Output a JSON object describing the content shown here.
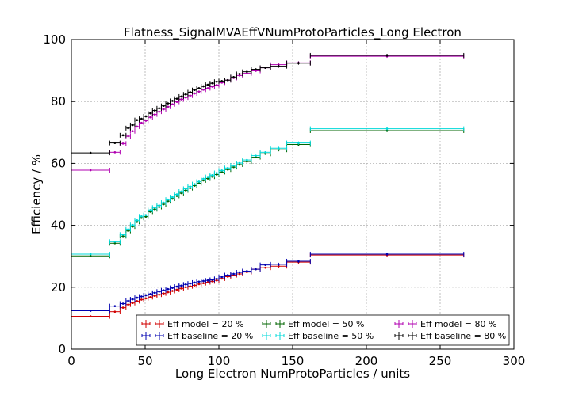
{
  "chart_data": {
    "type": "scatter",
    "title": "Flatness_SignalMVAEffVNumProtoParticles_Long Electron",
    "xlabel": "Long Electron NumProtoParticles / units",
    "ylabel": "Efficiency / %",
    "xlim": [
      0,
      300
    ],
    "ylim": [
      0,
      100
    ],
    "xticks": [
      "0",
      "50",
      "100",
      "150",
      "200",
      "250",
      "300"
    ],
    "yticks": [
      "0",
      "20",
      "40",
      "60",
      "80",
      "100"
    ],
    "grid": true,
    "legend_position": "bottom-right",
    "bins": [
      [
        0,
        26
      ],
      [
        26,
        33
      ],
      [
        33,
        37
      ],
      [
        37,
        40
      ],
      [
        40,
        43
      ],
      [
        43,
        46
      ],
      [
        46,
        49
      ],
      [
        49,
        52
      ],
      [
        52,
        55
      ],
      [
        55,
        58
      ],
      [
        58,
        61
      ],
      [
        61,
        64
      ],
      [
        64,
        67
      ],
      [
        67,
        70
      ],
      [
        70,
        73
      ],
      [
        73,
        76
      ],
      [
        76,
        79
      ],
      [
        79,
        82
      ],
      [
        82,
        85
      ],
      [
        85,
        88
      ],
      [
        88,
        91
      ],
      [
        91,
        94
      ],
      [
        94,
        97
      ],
      [
        97,
        100
      ],
      [
        100,
        104
      ],
      [
        104,
        108
      ],
      [
        108,
        112
      ],
      [
        112,
        116
      ],
      [
        116,
        122
      ],
      [
        122,
        128
      ],
      [
        128,
        135
      ],
      [
        135,
        146
      ],
      [
        146,
        162
      ],
      [
        162,
        266
      ]
    ],
    "series": [
      {
        "name": "Eff model = 20 %",
        "color": "#d00000",
        "offset": -0.4,
        "values": [
          11.0,
          12.5,
          13.8,
          14.8,
          15.3,
          15.9,
          16.4,
          16.8,
          17.2,
          17.6,
          18.0,
          18.4,
          18.8,
          19.2,
          19.6,
          20.0,
          20.4,
          20.7,
          21.0,
          21.4,
          21.7,
          22.0,
          22.3,
          22.6,
          23.2,
          23.8,
          24.3,
          24.7,
          25.3,
          26.2,
          26.7,
          27.2,
          28.5,
          30.8
        ]
      },
      {
        "name": "Eff baseline = 20 %",
        "color": "#0000b0",
        "offset": 0.4,
        "values": [
          12.0,
          13.5,
          14.3,
          15.2,
          15.7,
          16.2,
          16.6,
          17.0,
          17.4,
          17.8,
          18.2,
          18.6,
          19.0,
          19.4,
          19.8,
          20.1,
          20.5,
          20.8,
          21.1,
          21.4,
          21.6,
          21.8,
          22.0,
          22.3,
          22.9,
          23.5,
          23.9,
          24.4,
          24.8,
          25.4,
          26.8,
          27.0,
          28.0,
          30.3
        ]
      },
      {
        "name": "Eff model = 50 %",
        "color": "#006400",
        "offset": -0.4,
        "values": [
          30.5,
          34.6,
          36.9,
          38.6,
          40.0,
          41.5,
          42.8,
          43.2,
          44.8,
          45.6,
          46.3,
          47.2,
          48.2,
          49.0,
          49.9,
          50.8,
          51.7,
          52.4,
          53.2,
          54.0,
          54.9,
          55.5,
          56.1,
          56.8,
          57.6,
          58.4,
          59.2,
          60.0,
          61.0,
          62.4,
          63.5,
          64.8,
          66.5,
          71.0
        ]
      },
      {
        "name": "Eff baseline = 50 %",
        "color": "#00d8d8",
        "offset": 0.4,
        "values": [
          30.3,
          34.3,
          36.6,
          38.3,
          39.7,
          41.2,
          42.5,
          42.9,
          44.5,
          45.3,
          46.0,
          46.9,
          47.9,
          48.7,
          49.6,
          50.5,
          51.4,
          52.1,
          52.9,
          53.7,
          54.6,
          55.2,
          55.8,
          56.5,
          57.3,
          58.1,
          58.9,
          59.7,
          60.7,
          62.1,
          63.2,
          64.5,
          66.2,
          70.8
        ]
      },
      {
        "name": "Eff model = 80 %",
        "color": "#b000b0",
        "offset": -0.4,
        "values": [
          58.2,
          64.0,
          66.8,
          69.2,
          70.8,
          72.3,
          73.5,
          74.2,
          75.3,
          76.2,
          77.1,
          77.9,
          78.7,
          79.5,
          80.3,
          81.1,
          81.7,
          82.3,
          83.0,
          83.6,
          84.2,
          84.7,
          85.2,
          85.7,
          86.5,
          87.3,
          88.0,
          88.8,
          89.5,
          90.3,
          91.3,
          92.3,
          92.9,
          95.0
        ]
      },
      {
        "name": "Eff baseline = 80 %",
        "color": "#000000",
        "offset": 0.4,
        "values": [
          63.0,
          66.2,
          68.7,
          71.0,
          72.0,
          73.6,
          74.0,
          74.8,
          75.8,
          76.7,
          77.4,
          78.2,
          79.0,
          79.8,
          80.5,
          81.2,
          81.9,
          82.6,
          83.3,
          83.9,
          84.5,
          85.0,
          85.5,
          86.0,
          86.2,
          86.5,
          87.5,
          88.5,
          89.2,
          90.0,
          90.5,
          91.0,
          92.0,
          94.5
        ]
      }
    ]
  }
}
